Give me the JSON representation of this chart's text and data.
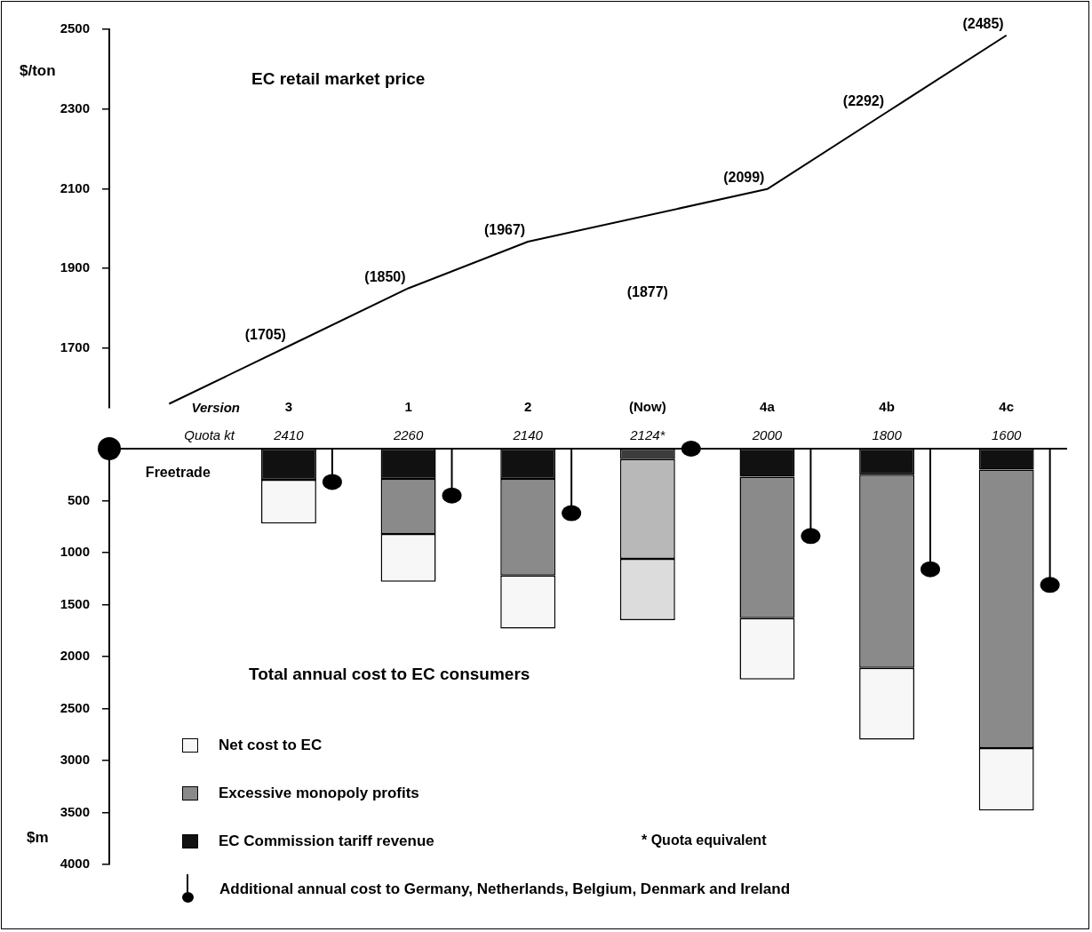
{
  "chart_data": [
    {
      "type": "line",
      "title": "EC retail market price",
      "ylabel": "$/ton",
      "categories": [
        null,
        null,
        null,
        null,
        null,
        null,
        null,
        null
      ],
      "series": [
        {
          "color": "#000000",
          "values": [
            1560,
            1705,
            1850,
            1967,
            null,
            2099,
            2292,
            2485
          ],
          "value_labels": [
            null,
            "(1705)",
            "(1850)",
            "(1967)",
            null,
            "(2099)",
            "(2292)",
            "(2485)"
          ]
        }
      ],
      "annotations": [
        "(1877)"
      ],
      "ylim": [
        1550,
        2500
      ],
      "yticks": [
        1700,
        1900,
        2100,
        2300,
        2500
      ],
      "tick_labels": "y",
      "marker": "none",
      "grid": false,
      "legend": false
    },
    {
      "type": "bar",
      "stacked": true,
      "title": "Total annual cost to EC consumers",
      "ylabel": "$m",
      "categories": [
        null,
        "3",
        "1",
        "2",
        "(Now)",
        "4a",
        "4b",
        "4c"
      ],
      "series": [
        {
          "name": "EC Commission tariff revenue",
          "color": "#111111",
          "colors": [
            "#111111",
            "#111111",
            "#111111",
            "#111111",
            "#3c3c3c",
            "#111111",
            "#111111",
            "#111111"
          ],
          "values": [
            null,
            300,
            290,
            290,
            100,
            270,
            250,
            200
          ]
        },
        {
          "name": "Excessive monopoly profits",
          "color": "#8a8a8a",
          "colors": [
            "#8a8a8a",
            "#8a8a8a",
            "#8a8a8a",
            "#8a8a8a",
            "#b8b8b8",
            "#8a8a8a",
            "#8a8a8a",
            "#8a8a8a"
          ],
          "values": [
            null,
            null,
            530,
            930,
            960,
            1360,
            1860,
            2680
          ]
        },
        {
          "name": "Net cost to EC",
          "color": "#f7f7f7",
          "colors": [
            "#f7f7f7",
            "#f7f7f7",
            "#f7f7f7",
            "#f7f7f7",
            "#dcdcdc",
            "#f7f7f7",
            "#f7f7f7",
            "#f7f7f7"
          ],
          "values": [
            null,
            420,
            460,
            510,
            590,
            590,
            690,
            600
          ]
        },
        {
          "name": "Additional annual cost to Germany, Netherlands, Belgium, Denmark and Ireland",
          "type": "lollipop",
          "color": "#000000",
          "values": [
            null,
            320,
            450,
            620,
            0,
            840,
            1160,
            1310
          ]
        }
      ],
      "annotations": [
        "Version",
        "Quota kt",
        "Freetrade",
        "* Quota equivalent",
        "2410",
        "2260",
        "2140",
        "2124*",
        "2000",
        "1800",
        "1600"
      ],
      "ylim": [
        4000,
        0
      ],
      "yticks": [
        500,
        1000,
        1500,
        2000,
        2500,
        3000,
        3500,
        4000
      ],
      "grid": false,
      "legend": "bottom left"
    }
  ]
}
